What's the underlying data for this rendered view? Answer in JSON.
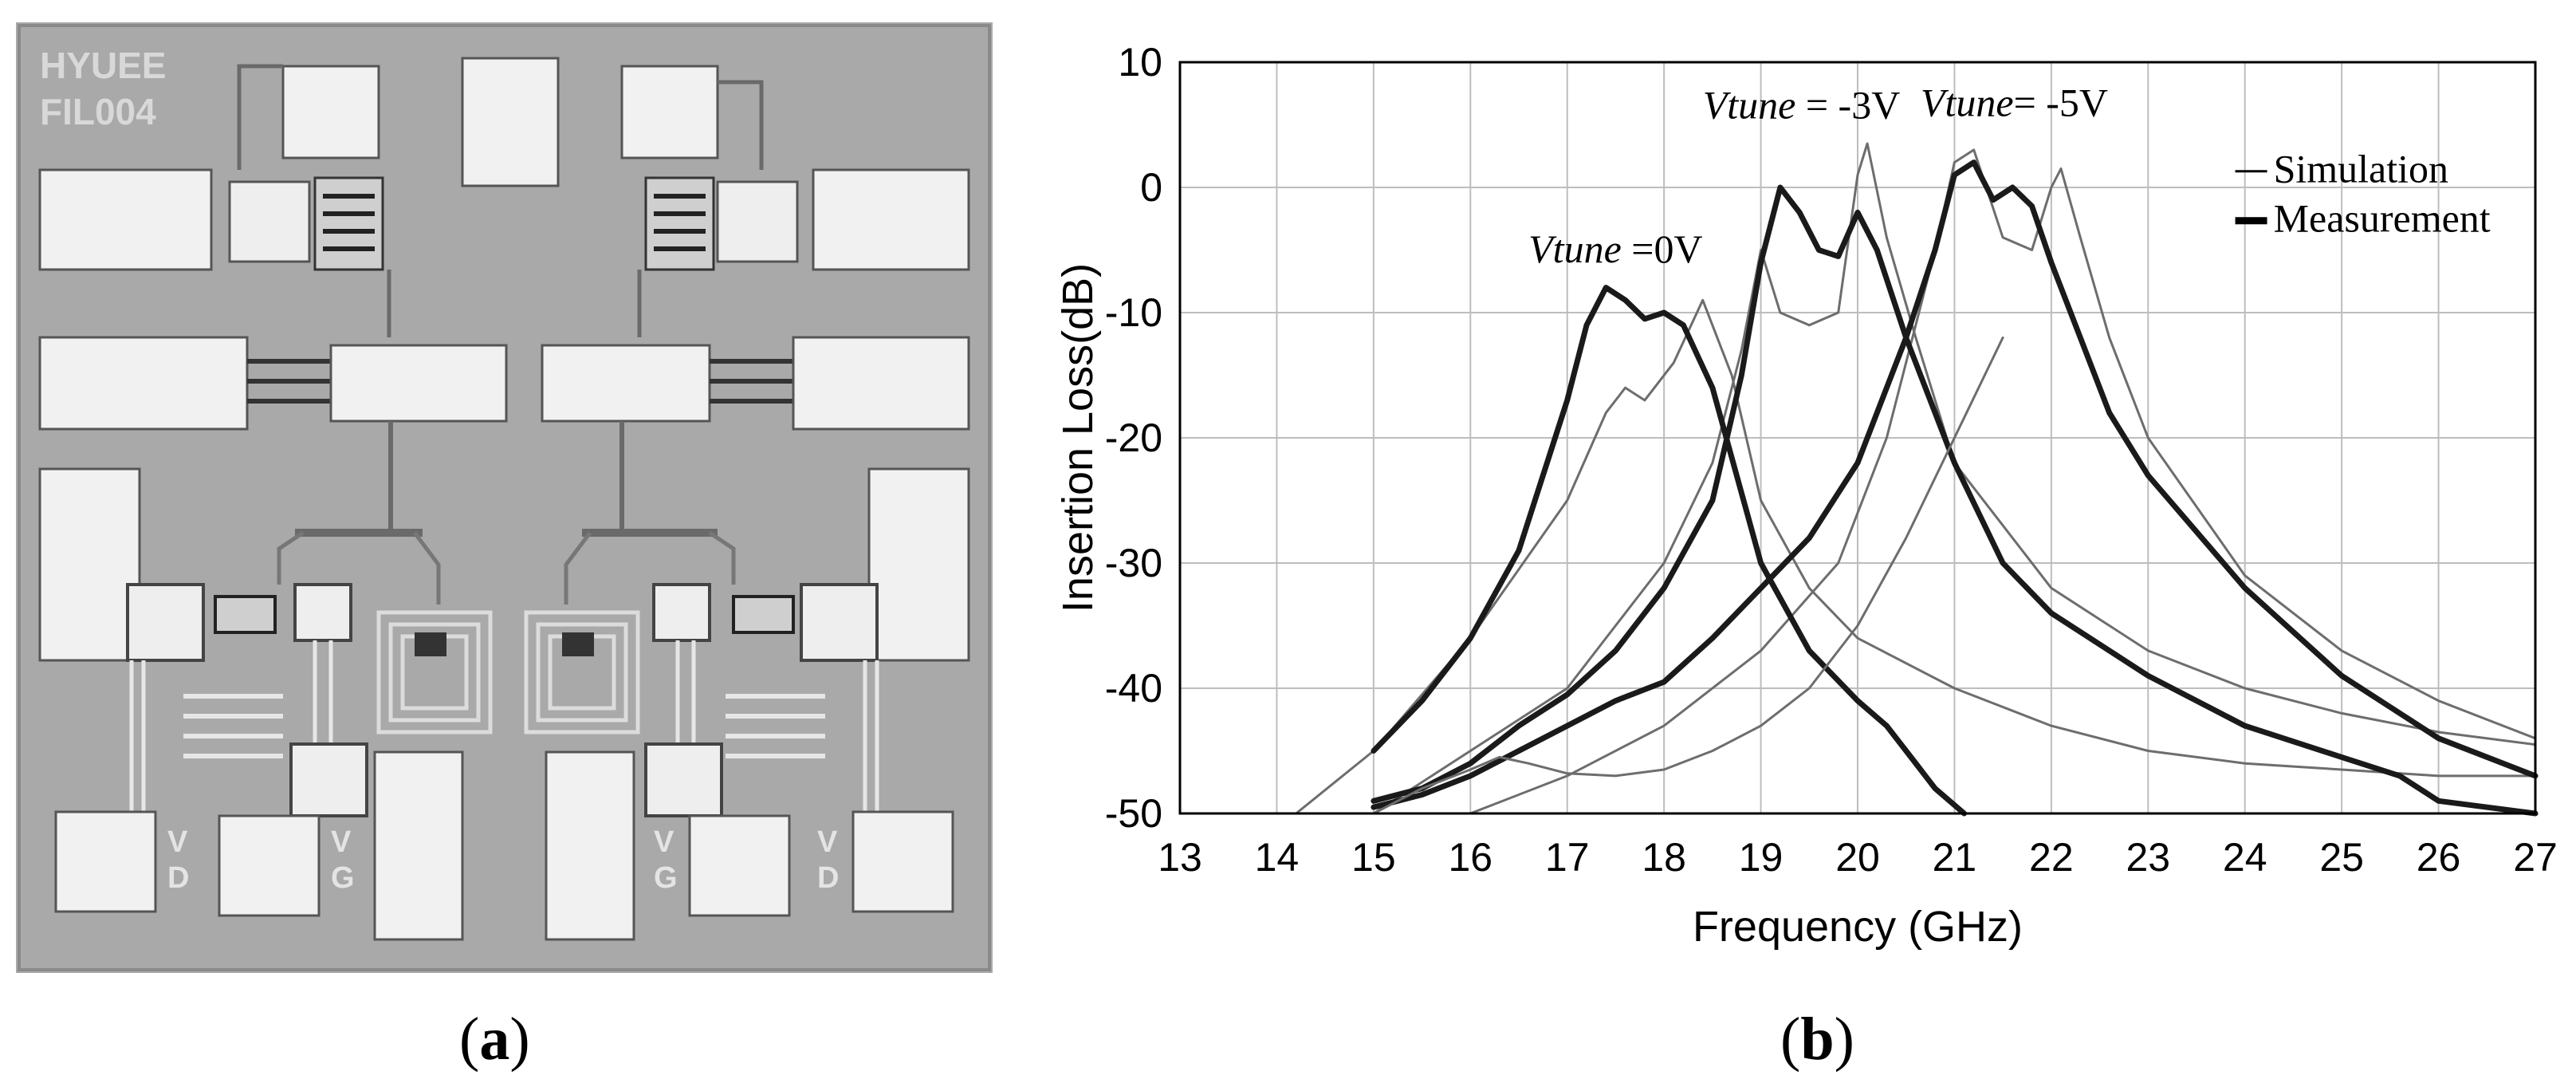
{
  "panels": {
    "a": {
      "label": "a",
      "chip_marking": [
        "HYUEE",
        "FIL004"
      ],
      "pad_letters": [
        "V",
        "D",
        "V",
        "G",
        "V",
        "G",
        "V",
        "D"
      ]
    },
    "b": {
      "label": "b"
    }
  },
  "chart_data": {
    "type": "line",
    "xlabel": "Frequency (GHz)",
    "ylabel": "Insertion Loss(dB)",
    "xlim": [
      13,
      27
    ],
    "ylim": [
      -50,
      10
    ],
    "xticks": [
      13,
      14,
      15,
      16,
      17,
      18,
      19,
      20,
      21,
      22,
      23,
      24,
      25,
      26,
      27
    ],
    "yticks": [
      10,
      0,
      -10,
      -20,
      -30,
      -40,
      -50
    ],
    "grid": true,
    "legend": {
      "position": "top-right",
      "entries": [
        {
          "label": "Simulation",
          "style": "thin"
        },
        {
          "label": "Measurement",
          "style": "thick"
        }
      ]
    },
    "annotations": [
      {
        "italic": "Vtune",
        "text": " =0V",
        "x": 16.6,
        "y": -6
      },
      {
        "italic": "Vtune",
        "text": " = -3V",
        "x": 18.4,
        "y": 5.5
      },
      {
        "italic": "Vtune",
        "text": "= -5V",
        "x": 20.65,
        "y": 5.7
      }
    ],
    "series": [
      {
        "group": "sim",
        "style": "thin",
        "x": [
          14.2,
          15,
          16,
          17,
          17.4,
          17.6,
          17.8,
          18.1,
          18.4,
          18.7,
          19,
          19.5,
          20,
          21,
          22,
          23,
          24,
          25,
          26,
          27
        ],
        "y": [
          -50,
          -45,
          -36,
          -25,
          -18,
          -16,
          -17,
          -14,
          -9,
          -15,
          -25,
          -32,
          -36,
          -40,
          -43,
          -45,
          -46,
          -46.5,
          -47,
          -47
        ]
      },
      {
        "group": "sim",
        "style": "thin",
        "x": [
          15,
          16,
          17,
          18,
          18.5,
          18.8,
          19,
          19.2,
          19.5,
          19.8,
          20,
          20.1,
          20.3,
          20.6,
          21,
          22,
          23,
          24,
          25,
          26,
          27
        ],
        "y": [
          -50,
          -45,
          -40,
          -30,
          -22,
          -13,
          -5,
          -10,
          -11,
          -10,
          1,
          3.5,
          -4,
          -12,
          -22,
          -32,
          -37,
          -40,
          -42,
          -43.5,
          -44.5
        ]
      },
      {
        "group": "sim",
        "style": "thin",
        "x": [
          16,
          17,
          18,
          19,
          19.8,
          20.3,
          20.8,
          21,
          21.2,
          21.5,
          21.8,
          22,
          22.1,
          22.3,
          22.6,
          23,
          24,
          25,
          26,
          27
        ],
        "y": [
          -50,
          -47,
          -43,
          -37,
          -30,
          -20,
          -5,
          2,
          3,
          -4,
          -5,
          0,
          1.5,
          -4,
          -12,
          -20,
          -31,
          -37,
          -41,
          -44
        ]
      },
      {
        "group": "meas",
        "style": "thick",
        "x": [
          15,
          15.5,
          16,
          16.5,
          17,
          17.2,
          17.4,
          17.6,
          17.8,
          18,
          18.2,
          18.5,
          19,
          19.5,
          20,
          20.3,
          20.6,
          20.8,
          21.1
        ],
        "y": [
          -45,
          -41,
          -36,
          -29,
          -17,
          -11,
          -8,
          -9,
          -10.5,
          -10,
          -11,
          -16,
          -30,
          -37,
          -41,
          -43,
          -46,
          -48,
          -50
        ]
      },
      {
        "group": "meas",
        "style": "thick",
        "x": [
          15,
          15.5,
          16,
          16.5,
          17,
          17.5,
          18,
          18.5,
          18.8,
          19,
          19.2,
          19.4,
          19.6,
          19.8,
          20,
          20.2,
          20.5,
          21,
          21.5,
          22,
          23,
          24,
          25,
          25.6,
          26,
          27
        ],
        "y": [
          -49,
          -48,
          -46,
          -43,
          -40.5,
          -37,
          -32,
          -25,
          -15,
          -6,
          0,
          -2,
          -5,
          -5.5,
          -2,
          -5,
          -12,
          -22,
          -30,
          -34,
          -39,
          -43,
          -45.5,
          -47,
          -49,
          -50
        ]
      },
      {
        "group": "meas",
        "style": "thick",
        "x": [
          15,
          15.5,
          16,
          16.5,
          17,
          17.5,
          18,
          18.5,
          19,
          19.5,
          20,
          20.5,
          20.8,
          21,
          21.2,
          21.4,
          21.6,
          21.8,
          22,
          22.3,
          22.6,
          23,
          24,
          25,
          26,
          27
        ],
        "y": [
          -49.5,
          -48.5,
          -47,
          -45,
          -43,
          -41,
          -39.5,
          -36,
          -32,
          -28,
          -22,
          -12,
          -5,
          1,
          2,
          -1,
          0,
          -1.5,
          -6,
          -12,
          -18,
          -23,
          -32,
          -39,
          -44,
          -47
        ]
      },
      {
        "group": "meas",
        "style": "thin",
        "x": [
          15,
          15.5,
          16,
          16.3,
          16.6,
          17,
          17.5,
          18,
          18.5,
          19,
          19.5,
          20,
          20.5,
          21,
          21.5
        ],
        "y": [
          -50,
          -48,
          -46.5,
          -45.5,
          -46,
          -46.8,
          -47,
          -46.5,
          -45,
          -43,
          -40,
          -35,
          -28,
          -20,
          -12
        ]
      }
    ]
  }
}
